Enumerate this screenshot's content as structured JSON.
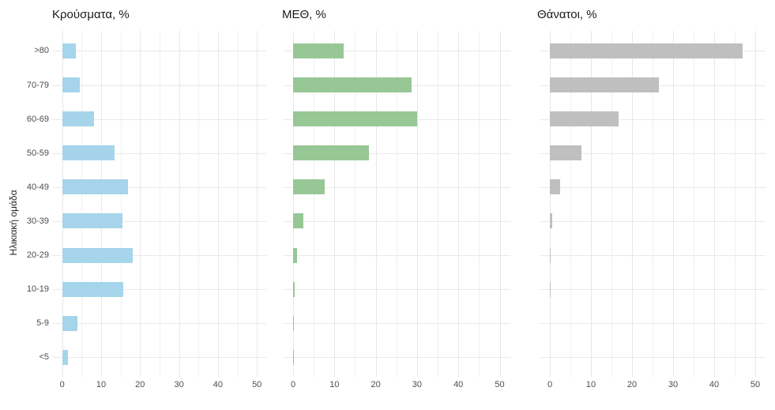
{
  "figure": {
    "kind": "three-panel horizontal bar chart",
    "background": "#ffffff"
  },
  "y_axis": {
    "title": "Ηλικιακή ομάδα",
    "categories_top_to_bottom": [
      ">80",
      "70-79",
      "60-69",
      "50-59",
      "40-49",
      "30-39",
      "20-29",
      "10-19",
      "5-9",
      "<5"
    ]
  },
  "x_axis": {
    "ticks": [
      0,
      10,
      20,
      30,
      40,
      50
    ],
    "minor_step": 5,
    "major_step": 10
  },
  "colors": {
    "cases_bar": "#a6d4ea",
    "icu_bar": "#97c795",
    "deaths_bar": "#bfbfbf",
    "grid_major": "#e7e7e7",
    "grid_minor": "#f0f0f0",
    "axis_text": "#4d4d4d",
    "title_text": "#1a1a1a"
  },
  "chart_data": [
    {
      "type": "bar",
      "orientation": "horizontal",
      "title": "Κρούσματα, %",
      "color": "#a6d4ea",
      "categories": [
        ">80",
        "70-79",
        "60-69",
        "50-59",
        "40-49",
        "30-39",
        "20-29",
        "10-19",
        "5-9",
        "<5"
      ],
      "values": [
        3.5,
        4.6,
        8.2,
        13.5,
        17.0,
        15.5,
        18.2,
        15.7,
        4.0,
        1.5
      ],
      "xlim": [
        0,
        50
      ],
      "ticks": [
        0,
        10,
        20,
        30,
        40,
        50
      ],
      "grid": true,
      "legend": "none"
    },
    {
      "type": "bar",
      "orientation": "horizontal",
      "title": "ΜΕΘ, %",
      "color": "#97c795",
      "categories": [
        ">80",
        "70-79",
        "60-69",
        "50-59",
        "40-49",
        "30-39",
        "20-29",
        "10-19",
        "5-9",
        "<5"
      ],
      "values": [
        12.3,
        28.6,
        30.0,
        18.3,
        7.7,
        2.5,
        1.0,
        0.4,
        0.2,
        0.2
      ],
      "xlim": [
        0,
        50
      ],
      "ticks": [
        0,
        10,
        20,
        30,
        40,
        50
      ],
      "grid": true,
      "legend": "none"
    },
    {
      "type": "bar",
      "orientation": "horizontal",
      "title": "Θάνατοι, %",
      "color": "#bfbfbf",
      "categories": [
        ">80",
        "70-79",
        "60-69",
        "50-59",
        "40-49",
        "30-39",
        "20-29",
        "10-19",
        "5-9",
        "<5"
      ],
      "values": [
        46.9,
        26.6,
        16.8,
        7.6,
        2.5,
        0.6,
        0.1,
        0.1,
        0,
        0
      ],
      "xlim": [
        0,
        50
      ],
      "ticks": [
        0,
        10,
        20,
        30,
        40,
        50
      ],
      "grid": true,
      "legend": "none"
    }
  ]
}
